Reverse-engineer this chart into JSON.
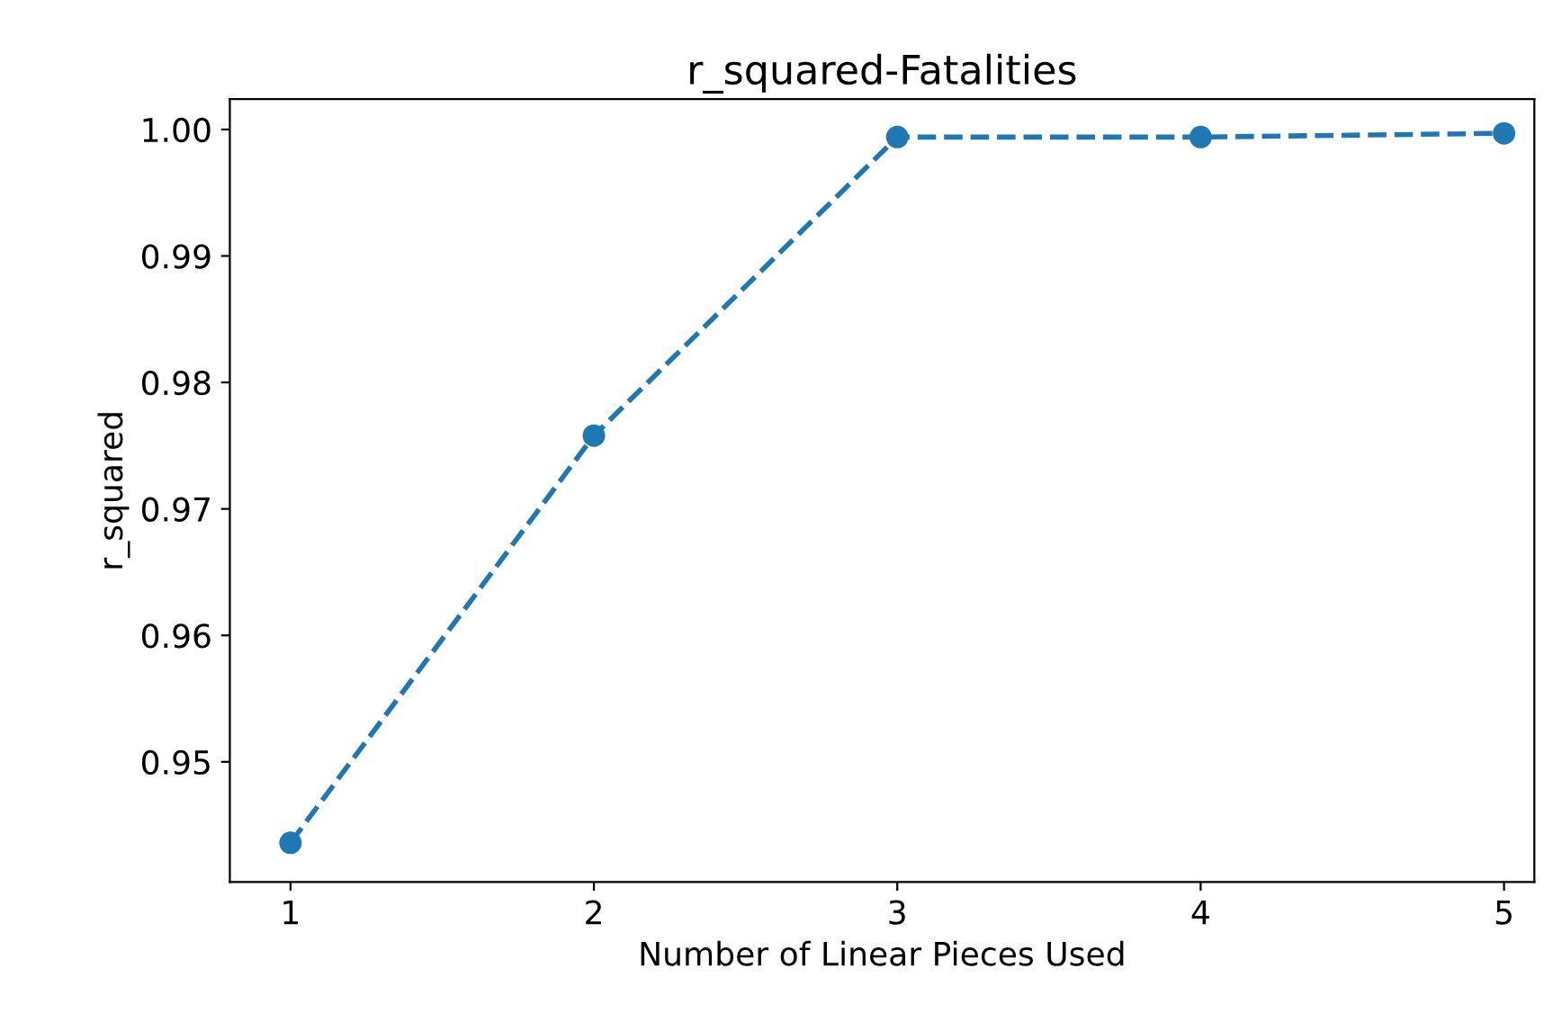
{
  "chart_data": {
    "type": "line",
    "title": "r_squared-Fatalities",
    "xlabel": "Number of Linear Pieces Used",
    "ylabel": "r_squared",
    "x": [
      1,
      2,
      3,
      4,
      5
    ],
    "series": [
      {
        "color": "#1f77b4",
        "values": [
          0.9436,
          0.9758,
          0.9994,
          0.9994,
          0.9997
        ]
      }
    ],
    "xlim": [
      0.8,
      5.1
    ],
    "ylim": [
      0.9405,
      1.0024
    ],
    "xticks": [
      1,
      2,
      3,
      4,
      5
    ],
    "yticks": [
      0.95,
      0.96,
      0.97,
      0.98,
      0.99,
      {
        "value": 1.0,
        "label": "1.00"
      }
    ],
    "marker": "circle",
    "line_style": "dashed",
    "grid": false,
    "legend": false
  }
}
